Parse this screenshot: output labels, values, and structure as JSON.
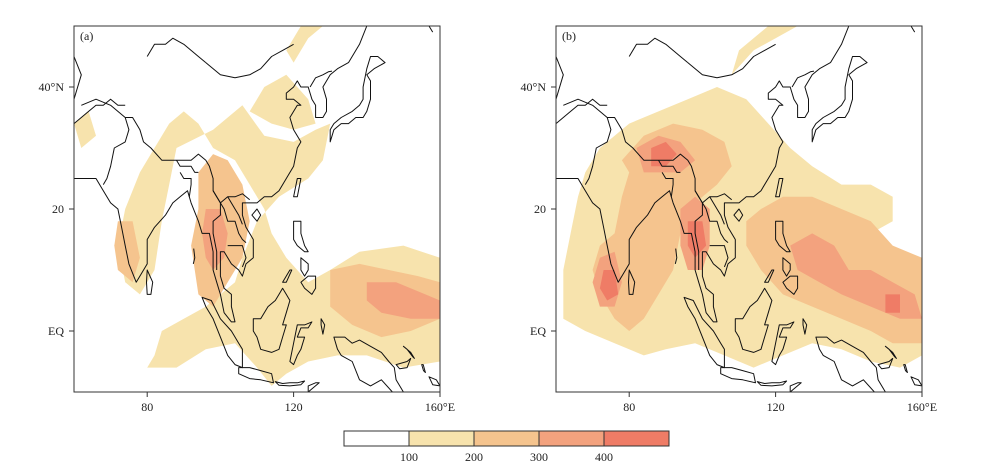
{
  "panels": [
    {
      "id": "a",
      "label": "(a)"
    },
    {
      "id": "b",
      "label": "(b)"
    }
  ],
  "axes": {
    "lat_ticks": [
      {
        "value": 40,
        "label": "40°N"
      },
      {
        "value": 20,
        "label": "20"
      },
      {
        "value": 0,
        "label": "EQ"
      }
    ],
    "lon_ticks": [
      {
        "value": 80,
        "label": "80"
      },
      {
        "value": 120,
        "label": "120"
      },
      {
        "value": 160,
        "label": "160°E"
      }
    ],
    "lon_range": [
      60,
      160
    ],
    "lat_range": [
      -10,
      50
    ]
  },
  "colorbar": {
    "colors": [
      "#ffffff",
      "#f7e3ad",
      "#f5c48e",
      "#f3a27e",
      "#ef7c66"
    ],
    "labels": [
      "100",
      "200",
      "300",
      "400"
    ]
  },
  "chart_data": [
    {
      "type": "heatmap",
      "title": "",
      "panel": "(a)",
      "x_range": [
        60,
        160
      ],
      "y_range": [
        -10,
        50
      ],
      "levels": [
        100,
        200,
        300,
        400
      ],
      "regions": [
        {
          "level": 100,
          "polygon": [
            [
              88,
              30
            ],
            [
              98,
              33
            ],
            [
              106,
              37
            ],
            [
              112,
              32
            ],
            [
              120,
              31
            ],
            [
              126,
              33
            ],
            [
              130,
              34
            ],
            [
              128,
              28
            ],
            [
              124,
              25
            ],
            [
              116,
              22
            ],
            [
              110,
              18
            ],
            [
              106,
              12
            ],
            [
              104,
              8
            ],
            [
              100,
              6
            ],
            [
              96,
              4
            ],
            [
              90,
              2
            ],
            [
              84,
              0
            ],
            [
              82,
              -4
            ],
            [
              80,
              -6
            ],
            [
              88,
              -6
            ],
            [
              96,
              -3
            ],
            [
              104,
              -2
            ],
            [
              110,
              -6
            ],
            [
              114,
              -9
            ],
            [
              118,
              -7
            ],
            [
              124,
              -5
            ],
            [
              132,
              -4
            ],
            [
              140,
              -4
            ],
            [
              150,
              -6
            ],
            [
              160,
              -5
            ],
            [
              160,
              12
            ],
            [
              150,
              14
            ],
            [
              138,
              13
            ],
            [
              130,
              10
            ],
            [
              124,
              8
            ],
            [
              118,
              12
            ],
            [
              114,
              16
            ],
            [
              112,
              20
            ],
            [
              108,
              24
            ],
            [
              104,
              28
            ],
            [
              98,
              30
            ],
            [
              94,
              34
            ],
            [
              90,
              36
            ],
            [
              86,
              34
            ],
            [
              82,
              30
            ],
            [
              78,
              26
            ],
            [
              74,
              20
            ],
            [
              72,
              14
            ],
            [
              74,
              8
            ],
            [
              78,
              6
            ],
            [
              82,
              10
            ],
            [
              84,
              18
            ],
            [
              86,
              24
            ]
          ]
        },
        {
          "level": 100,
          "polygon": [
            [
              108,
              36
            ],
            [
              112,
              40
            ],
            [
              118,
              42
            ],
            [
              124,
              38
            ],
            [
              126,
              34
            ],
            [
              120,
              33
            ],
            [
              114,
              34
            ]
          ]
        },
        {
          "level": 100,
          "polygon": [
            [
              120,
              44
            ],
            [
              124,
              48
            ],
            [
              128,
              50
            ],
            [
              122,
              50
            ],
            [
              118,
              46
            ]
          ]
        },
        {
          "level": 100,
          "polygon": [
            [
              60,
              34
            ],
            [
              64,
              36
            ],
            [
              66,
              32
            ],
            [
              62,
              30
            ]
          ]
        },
        {
          "level": 200,
          "polygon": [
            [
              94,
              26
            ],
            [
              98,
              29
            ],
            [
              102,
              28
            ],
            [
              106,
              24
            ],
            [
              108,
              18
            ],
            [
              106,
              12
            ],
            [
              102,
              8
            ],
            [
              98,
              4
            ],
            [
              94,
              6
            ],
            [
              92,
              14
            ],
            [
              94,
              20
            ]
          ]
        },
        {
          "level": 200,
          "polygon": [
            [
              130,
              10
            ],
            [
              138,
              11
            ],
            [
              146,
              10
            ],
            [
              154,
              9
            ],
            [
              160,
              8
            ],
            [
              160,
              2
            ],
            [
              152,
              0
            ],
            [
              144,
              -1
            ],
            [
              136,
              1
            ],
            [
              130,
              4
            ]
          ]
        },
        {
          "level": 200,
          "polygon": [
            [
              72,
              18
            ],
            [
              76,
              18
            ],
            [
              78,
              12
            ],
            [
              76,
              8
            ],
            [
              72,
              10
            ],
            [
              71,
              14
            ]
          ]
        },
        {
          "level": 300,
          "polygon": [
            [
              96,
              20
            ],
            [
              100,
              20
            ],
            [
              102,
              16
            ],
            [
              101,
              12
            ],
            [
              98,
              10
            ],
            [
              96,
              12
            ],
            [
              95,
              16
            ]
          ]
        },
        {
          "level": 300,
          "polygon": [
            [
              140,
              8
            ],
            [
              148,
              8
            ],
            [
              156,
              6
            ],
            [
              160,
              5
            ],
            [
              160,
              2
            ],
            [
              152,
              2
            ],
            [
              144,
              3
            ],
            [
              140,
              5
            ]
          ]
        }
      ]
    },
    {
      "type": "heatmap",
      "title": "",
      "panel": "(b)",
      "x_range": [
        60,
        160
      ],
      "y_range": [
        -10,
        50
      ],
      "levels": [
        100,
        200,
        300,
        400
      ],
      "regions": [
        {
          "level": 100,
          "polygon": [
            [
              72,
              30
            ],
            [
              80,
              34
            ],
            [
              88,
              36
            ],
            [
              96,
              38
            ],
            [
              104,
              40
            ],
            [
              112,
              38
            ],
            [
              118,
              34
            ],
            [
              124,
              30
            ],
            [
              130,
              27
            ],
            [
              138,
              24
            ],
            [
              146,
              24
            ],
            [
              152,
              22
            ],
            [
              152,
              18
            ],
            [
              146,
              16
            ],
            [
              140,
              14
            ],
            [
              134,
              10
            ],
            [
              134,
              6
            ],
            [
              140,
              6
            ],
            [
              148,
              6
            ],
            [
              156,
              4
            ],
            [
              160,
              2
            ],
            [
              160,
              -4
            ],
            [
              154,
              -6
            ],
            [
              146,
              -5
            ],
            [
              138,
              -3
            ],
            [
              130,
              -2
            ],
            [
              122,
              -4
            ],
            [
              114,
              -6
            ],
            [
              106,
              -4
            ],
            [
              98,
              -2
            ],
            [
              90,
              -3
            ],
            [
              84,
              -4
            ],
            [
              76,
              -2
            ],
            [
              68,
              0
            ],
            [
              62,
              2
            ],
            [
              62,
              10
            ],
            [
              64,
              16
            ],
            [
              66,
              22
            ],
            [
              68,
              26
            ]
          ]
        },
        {
          "level": 100,
          "polygon": [
            [
              108,
              42
            ],
            [
              114,
              46
            ],
            [
              120,
              48
            ],
            [
              126,
              50
            ],
            [
              118,
              50
            ],
            [
              110,
              46
            ]
          ]
        },
        {
          "level": 200,
          "polygon": [
            [
              78,
              28
            ],
            [
              84,
              32
            ],
            [
              92,
              34
            ],
            [
              100,
              33
            ],
            [
              106,
              31
            ],
            [
              108,
              27
            ],
            [
              104,
              24
            ],
            [
              100,
              22
            ],
            [
              96,
              20
            ],
            [
              94,
              16
            ],
            [
              92,
              10
            ],
            [
              88,
              6
            ],
            [
              84,
              2
            ],
            [
              80,
              0
            ],
            [
              76,
              2
            ],
            [
              72,
              6
            ],
            [
              70,
              10
            ],
            [
              72,
              14
            ],
            [
              76,
              16
            ],
            [
              78,
              22
            ],
            [
              80,
              26
            ]
          ]
        },
        {
          "level": 200,
          "polygon": [
            [
              116,
              20
            ],
            [
              122,
              22
            ],
            [
              130,
              22
            ],
            [
              138,
              20
            ],
            [
              146,
              18
            ],
            [
              152,
              14
            ],
            [
              160,
              12
            ],
            [
              160,
              -2
            ],
            [
              152,
              -2
            ],
            [
              146,
              0
            ],
            [
              138,
              2
            ],
            [
              130,
              4
            ],
            [
              122,
              6
            ],
            [
              116,
              10
            ],
            [
              112,
              14
            ],
            [
              112,
              18
            ]
          ]
        },
        {
          "level": 300,
          "polygon": [
            [
              82,
              30
            ],
            [
              88,
              32
            ],
            [
              94,
              31
            ],
            [
              98,
              28
            ],
            [
              94,
              26
            ],
            [
              88,
              26
            ],
            [
              84,
              26
            ]
          ]
        },
        {
          "level": 300,
          "polygon": [
            [
              94,
              20
            ],
            [
              98,
              22
            ],
            [
              102,
              20
            ],
            [
              102,
              14
            ],
            [
              100,
              10
            ],
            [
              96,
              10
            ],
            [
              94,
              14
            ]
          ]
        },
        {
          "level": 300,
          "polygon": [
            [
              72,
              12
            ],
            [
              76,
              13
            ],
            [
              78,
              8
            ],
            [
              76,
              4
            ],
            [
              72,
              4
            ],
            [
              70,
              8
            ]
          ]
        },
        {
          "level": 300,
          "polygon": [
            [
              124,
              14
            ],
            [
              130,
              16
            ],
            [
              136,
              14
            ],
            [
              140,
              10
            ],
            [
              146,
              10
            ],
            [
              152,
              8
            ],
            [
              158,
              6
            ],
            [
              160,
              2
            ],
            [
              154,
              2
            ],
            [
              146,
              4
            ],
            [
              138,
              6
            ],
            [
              132,
              8
            ],
            [
              126,
              10
            ]
          ]
        },
        {
          "level": 400,
          "polygon": [
            [
              86,
              30
            ],
            [
              90,
              31
            ],
            [
              93,
              29
            ],
            [
              90,
              27
            ],
            [
              86,
              27
            ]
          ]
        },
        {
          "level": 400,
          "polygon": [
            [
              96,
              18
            ],
            [
              100,
              18
            ],
            [
              101,
              14
            ],
            [
              98,
              12
            ],
            [
              96,
              14
            ]
          ]
        },
        {
          "level": 400,
          "polygon": [
            [
              73,
              10
            ],
            [
              76,
              10
            ],
            [
              77,
              6
            ],
            [
              74,
              5
            ],
            [
              72,
              7
            ]
          ]
        },
        {
          "level": 400,
          "polygon": [
            [
              150,
              6
            ],
            [
              154,
              6
            ],
            [
              154,
              3
            ],
            [
              150,
              3
            ]
          ]
        }
      ]
    }
  ]
}
